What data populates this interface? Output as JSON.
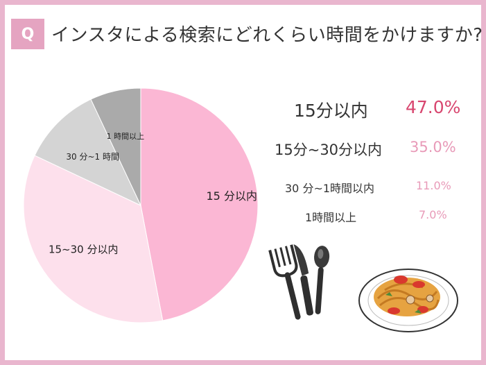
{
  "header": {
    "badge": "Q",
    "title": "インスタによる検索にどれくらい時間をかけますか?"
  },
  "chart_data": {
    "type": "pie",
    "title": "インスタによる検索にどれくらい時間をかけますか?",
    "start": "top, clockwise",
    "slices": [
      {
        "label": "15 分以内",
        "legend": "15分以内",
        "value": 47.0,
        "value_label": "47.0%",
        "color": "#fbb7d4"
      },
      {
        "label": "15~30 分以内",
        "legend": "15分~30分以内",
        "value": 35.0,
        "value_label": "35.0%",
        "color": "#fde0ec"
      },
      {
        "label": "30 分~1 時間",
        "legend": "30 分~1時間以内",
        "value": 11.0,
        "value_label": "11.0%",
        "color": "#d4d4d4"
      },
      {
        "label": "1 時間以上",
        "legend": "1時間以上",
        "value": 7.0,
        "value_label": "7.0%",
        "color": "#aaaaaa"
      }
    ]
  },
  "illustration": {
    "icons": [
      "fork-icon",
      "knife-icon",
      "spoon-icon",
      "pasta-plate-icon"
    ],
    "colors": {
      "frame": "#e9b6ce",
      "badge": "#e5a4c1",
      "accent": "#d8466f"
    }
  }
}
